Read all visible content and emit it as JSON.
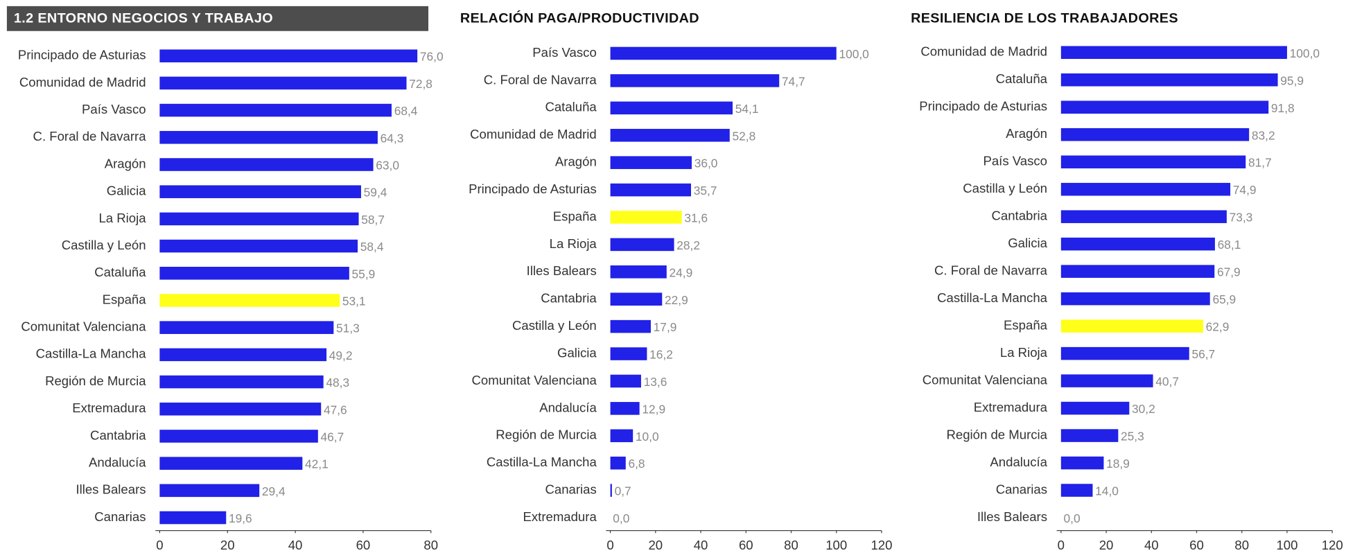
{
  "chart_data": [
    {
      "type": "bar",
      "orientation": "horizontal",
      "title": "1.2 ENTORNO NEGOCIOS Y TRABAJO",
      "categories": [
        "Principado de Asturias",
        "Comunidad de Madrid",
        "País Vasco",
        "C. Foral de Navarra",
        "Aragón",
        "Galicia",
        "La Rioja",
        "Castilla y León",
        "Cataluña",
        "España",
        "Comunitat Valenciana",
        "Castilla-La Mancha",
        "Región de Murcia",
        "Extremadura",
        "Cantabria",
        "Andalucía",
        "Illes Balears",
        "Canarias"
      ],
      "values": [
        76.0,
        72.8,
        68.4,
        64.3,
        63.0,
        59.4,
        58.7,
        58.4,
        55.9,
        53.1,
        51.3,
        49.2,
        48.3,
        47.6,
        46.7,
        42.1,
        29.4,
        19.6
      ],
      "value_labels": [
        "76,0",
        "72,8",
        "68,4",
        "64,3",
        "63,0",
        "59,4",
        "58,7",
        "58,4",
        "55,9",
        "53,1",
        "51,3",
        "49,2",
        "48,3",
        "47,6",
        "46,7",
        "42,1",
        "29,4",
        "19,6"
      ],
      "colors": [
        "#2121e8",
        "#2121e8",
        "#2121e8",
        "#2121e8",
        "#2121e8",
        "#2121e8",
        "#2121e8",
        "#2121e8",
        "#2121e8",
        "#ffff1a",
        "#2121e8",
        "#2121e8",
        "#2121e8",
        "#2121e8",
        "#2121e8",
        "#2121e8",
        "#2121e8",
        "#2121e8"
      ],
      "xlim": [
        0,
        80
      ],
      "xticks": [
        0,
        20,
        40,
        60,
        80
      ]
    },
    {
      "type": "bar",
      "orientation": "horizontal",
      "title": "RELACIÓN PAGA/PRODUCTIVIDAD",
      "categories": [
        "País Vasco",
        "C. Foral de Navarra",
        "Cataluña",
        "Comunidad de Madrid",
        "Aragón",
        "Principado de Asturias",
        "España",
        "La Rioja",
        "Illes Balears",
        "Cantabria",
        "Castilla y León",
        "Galicia",
        "Comunitat Valenciana",
        "Andalucía",
        "Región de Murcia",
        "Castilla-La Mancha",
        "Canarias",
        "Extremadura"
      ],
      "values": [
        100.0,
        74.7,
        54.1,
        52.8,
        36.0,
        35.7,
        31.6,
        28.2,
        24.9,
        22.9,
        17.9,
        16.2,
        13.6,
        12.9,
        10.0,
        6.8,
        0.7,
        0.0
      ],
      "value_labels": [
        "100,0",
        "74,7",
        "54,1",
        "52,8",
        "36,0",
        "35,7",
        "31,6",
        "28,2",
        "24,9",
        "22,9",
        "17,9",
        "16,2",
        "13,6",
        "12,9",
        "10,0",
        "6,8",
        "0,7",
        "0,0"
      ],
      "colors": [
        "#2121e8",
        "#2121e8",
        "#2121e8",
        "#2121e8",
        "#2121e8",
        "#2121e8",
        "#ffff1a",
        "#2121e8",
        "#2121e8",
        "#2121e8",
        "#2121e8",
        "#2121e8",
        "#2121e8",
        "#2121e8",
        "#2121e8",
        "#2121e8",
        "#2121e8",
        "#2121e8"
      ],
      "xlim": [
        0,
        120
      ],
      "xticks": [
        0,
        20,
        40,
        60,
        80,
        100,
        120
      ]
    },
    {
      "type": "bar",
      "orientation": "horizontal",
      "title": "RESILIENCIA DE LOS TRABAJADORES",
      "categories": [
        "Comunidad de Madrid",
        "Cataluña",
        "Principado de Asturias",
        "Aragón",
        "País Vasco",
        "Castilla y León",
        "Cantabria",
        "Galicia",
        "C. Foral de Navarra",
        "Castilla-La Mancha",
        "España",
        "La Rioja",
        "Comunitat Valenciana",
        "Extremadura",
        "Región de Murcia",
        "Andalucía",
        "Canarias",
        "Illes Balears"
      ],
      "values": [
        100.0,
        95.9,
        91.8,
        83.2,
        81.7,
        74.9,
        73.3,
        68.1,
        67.9,
        65.9,
        62.9,
        56.7,
        40.7,
        30.2,
        25.3,
        18.9,
        14.0,
        0.0
      ],
      "value_labels": [
        "100,0",
        "95,9",
        "91,8",
        "83,2",
        "81,7",
        "74,9",
        "73,3",
        "68,1",
        "67,9",
        "65,9",
        "62,9",
        "56,7",
        "40,7",
        "30,2",
        "25,3",
        "18,9",
        "14,0",
        "0,0"
      ],
      "colors": [
        "#2121e8",
        "#2121e8",
        "#2121e8",
        "#2121e8",
        "#2121e8",
        "#2121e8",
        "#2121e8",
        "#2121e8",
        "#2121e8",
        "#2121e8",
        "#ffff1a",
        "#2121e8",
        "#2121e8",
        "#2121e8",
        "#2121e8",
        "#2121e8",
        "#2121e8",
        "#2121e8"
      ],
      "xlim": [
        0,
        120
      ],
      "xticks": [
        0,
        20,
        40,
        60,
        80,
        100,
        120
      ]
    }
  ]
}
